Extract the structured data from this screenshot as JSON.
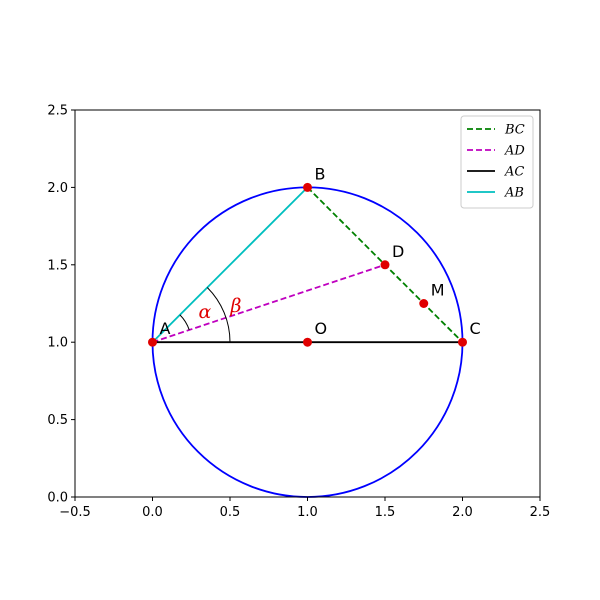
{
  "chart_data": {
    "type": "geometry",
    "title": "",
    "xlabel": "",
    "ylabel": "",
    "xlim": [
      -0.5,
      2.5
    ],
    "ylim": [
      0,
      2.5
    ],
    "xticks": [
      -0.5,
      0.0,
      0.5,
      1.0,
      1.5,
      2.0,
      2.5
    ],
    "yticks": [
      0.0,
      0.5,
      1.0,
      1.5,
      2.0,
      2.5
    ],
    "xtick_labels": [
      "−0.5",
      "0.0",
      "0.5",
      "1.0",
      "1.5",
      "2.0",
      "2.5"
    ],
    "ytick_labels": [
      "0.0",
      "0.5",
      "1.0",
      "1.5",
      "2.0",
      "2.5"
    ],
    "grid": false,
    "legend_position": "top-right",
    "circle": {
      "center": [
        1,
        1
      ],
      "radius": 1,
      "color": "#0000ff"
    },
    "points": [
      {
        "label": "A",
        "x": 0,
        "y": 1
      },
      {
        "label": "B",
        "x": 1,
        "y": 2
      },
      {
        "label": "C",
        "x": 2,
        "y": 1
      },
      {
        "label": "D",
        "x": 1.5,
        "y": 1.5
      },
      {
        "label": "M",
        "x": 1.75,
        "y": 1.25
      },
      {
        "label": "O",
        "x": 1,
        "y": 1
      }
    ],
    "point_color": "#e00000",
    "series": [
      {
        "name": "BC",
        "from": [
          1,
          2
        ],
        "to": [
          2,
          1
        ],
        "color": "#008000",
        "style": "dashed"
      },
      {
        "name": "AD",
        "from": [
          0,
          1
        ],
        "to": [
          1.5,
          1.5
        ],
        "color": "#bf00bf",
        "style": "dashed"
      },
      {
        "name": "AC",
        "from": [
          0,
          1
        ],
        "to": [
          2,
          1
        ],
        "color": "#000000",
        "style": "solid"
      },
      {
        "name": "AB",
        "from": [
          0,
          1
        ],
        "to": [
          1,
          2
        ],
        "color": "#00bfbf",
        "style": "solid"
      }
    ],
    "angles": [
      {
        "label": "α",
        "vertex": [
          0,
          1
        ],
        "radius": 0.25,
        "from_deg": 18.43,
        "to_deg": 45
      },
      {
        "label": "β",
        "vertex": [
          0,
          1
        ],
        "radius": 0.5,
        "from_deg": 0,
        "to_deg": 45
      }
    ],
    "angle_label_color": "#e00000"
  }
}
